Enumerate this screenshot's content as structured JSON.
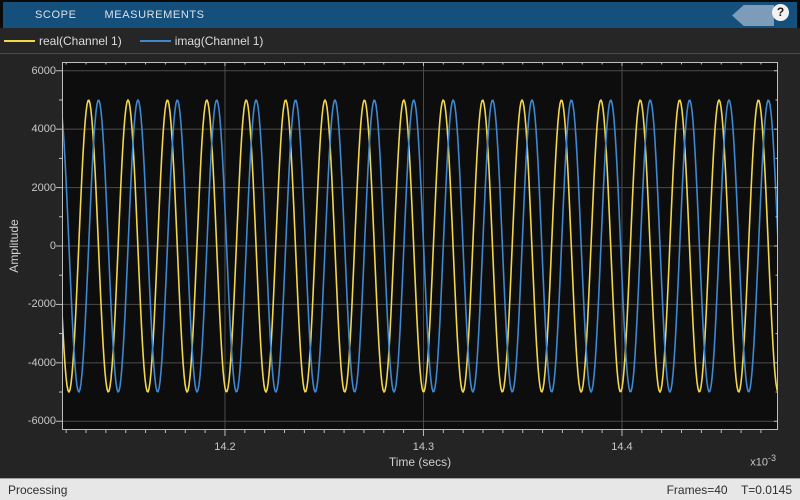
{
  "toolbar": {
    "tabs": [
      {
        "label": "SCOPE"
      },
      {
        "label": "MEASUREMENTS"
      }
    ],
    "help_label": "?"
  },
  "legend": {
    "items": [
      {
        "label": "real(Channel 1)",
        "color": "#F2D64B"
      },
      {
        "label": "imag(Channel 1)",
        "color": "#3E87D1"
      }
    ]
  },
  "chart_data": {
    "type": "line",
    "title": "",
    "xlabel": "Time (secs)",
    "ylabel": "Amplitude",
    "x_units": "1e-3 secs",
    "x_exponent": {
      "base": "x10",
      "exp": "-3"
    },
    "xlim": [
      14.1179,
      14.4786
    ],
    "ylim": [
      -6300,
      6300
    ],
    "x_ticks": [
      14.2,
      14.3,
      14.4
    ],
    "y_ticks": [
      6000,
      4000,
      2000,
      0,
      -2000,
      -4000,
      -6000
    ],
    "x_minor_step": 0.01,
    "y_minor_step": 1000,
    "grid": true,
    "legend_position": "top-bar",
    "series": [
      {
        "name": "real(Channel 1)",
        "color": "#F2D64B",
        "waveform": "cosine",
        "amplitude": 5000,
        "period": 0.01985,
        "peak_x": 14.1313
      },
      {
        "name": "imag(Channel 1)",
        "color": "#3E87D1",
        "waveform": "cosine",
        "amplitude": 5000,
        "period": 0.01985,
        "peak_x": 14.1363
      }
    ],
    "axis_colors": {
      "grid": "#4d4d4d",
      "box": "#bebebe",
      "plot_bg": "#0d0d0d",
      "figure_bg": "#242424",
      "tick_text": "#c8c8c8"
    }
  },
  "statusbar": {
    "left": "Processing",
    "frames": "Frames=40",
    "time": "T=0.0145"
  }
}
